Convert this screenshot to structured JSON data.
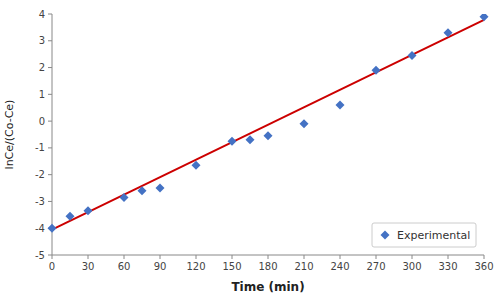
{
  "chart_data": {
    "type": "scatter",
    "title": "",
    "xlabel": "Time (min)",
    "ylabel": "lnCe/(Co-Ce)",
    "xlim": [
      0,
      360
    ],
    "ylim": [
      -5,
      4
    ],
    "xticks": [
      0,
      30,
      60,
      90,
      120,
      150,
      180,
      210,
      240,
      270,
      300,
      330,
      360
    ],
    "yticks": [
      -5,
      -4,
      -3,
      -2,
      -1,
      0,
      1,
      2,
      3,
      4
    ],
    "grid": false,
    "legend": "lower right",
    "series": [
      {
        "type": "line",
        "color": "#cc0000",
        "line_style": "solid",
        "x": [
          0,
          360
        ],
        "values": [
          -4.05,
          3.78
        ]
      },
      {
        "name": "Experimental",
        "type": "scatter",
        "color": "#4472c4",
        "marker": "diamond",
        "x": [
          0,
          15,
          30,
          60,
          75,
          90,
          120,
          150,
          165,
          180,
          210,
          240,
          270,
          300,
          330,
          360
        ],
        "values": [
          -4.0,
          -3.55,
          -3.35,
          -2.85,
          -2.6,
          -2.5,
          -1.65,
          -0.75,
          -0.7,
          -0.55,
          -0.1,
          0.6,
          1.9,
          2.45,
          3.3,
          3.9
        ]
      }
    ]
  }
}
